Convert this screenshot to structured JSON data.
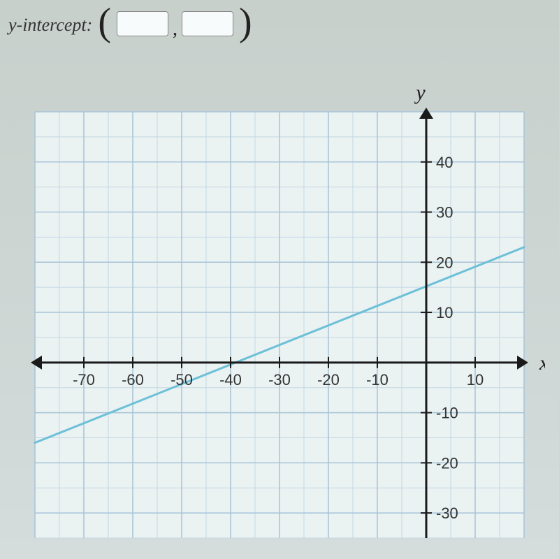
{
  "prompt": {
    "label": "y-intercept:",
    "input1_value": "",
    "input2_value": ""
  },
  "chart": {
    "type": "line",
    "x_axis_label": "x",
    "y_axis_label": "y",
    "xlim": [
      -80,
      20
    ],
    "ylim": [
      -35,
      50
    ],
    "xtick_step": 10,
    "ytick_step": 10,
    "minor_grid_step_x": 5,
    "minor_grid_step_y": 5,
    "xtick_labels": [
      "-70",
      "-60",
      "-50",
      "-40",
      "-30",
      "-20",
      "-10",
      "",
      "10"
    ],
    "ytick_labels_pos": [
      "10",
      "20",
      "30",
      "40"
    ],
    "ytick_labels_neg": [
      "-10",
      "-20",
      "-30"
    ],
    "line": {
      "point1": {
        "x": -80,
        "y": -16
      },
      "point2": {
        "x": 20,
        "y": 23
      },
      "color": "#6cc0d8",
      "width": 3
    },
    "grid_color": "#a8c4d8",
    "minor_grid_color": "#c4d8e4",
    "axis_color": "#1a1a1a",
    "background_color": "#eaf2f2",
    "axis_width": 3,
    "tick_length": 8,
    "label_fontsize": 22,
    "axis_label_fontsize": 30
  }
}
